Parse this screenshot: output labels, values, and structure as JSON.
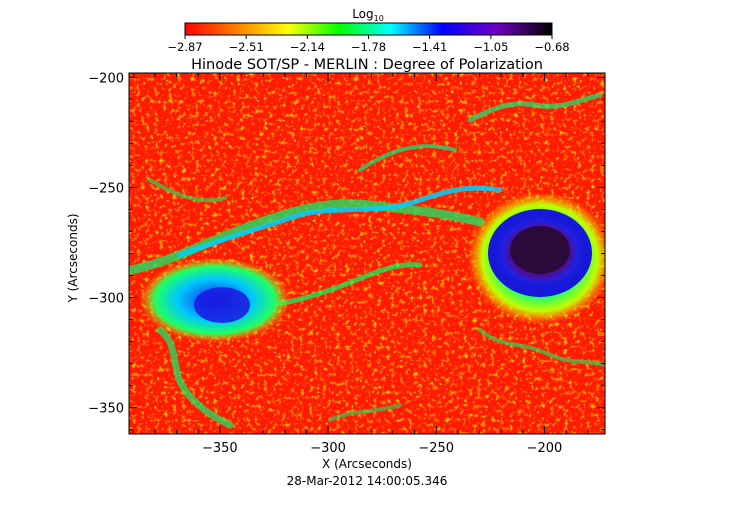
{
  "chart_data": {
    "type": "heatmap",
    "title": "Hinode SOT/SP - MERLIN : Degree of Polarization",
    "colorbar": {
      "label": "Log",
      "label_subscript": "10",
      "ticks": [
        "-2.87",
        "-2.51",
        "-2.14",
        "-1.78",
        "-1.41",
        "-1.05",
        "-0.68"
      ],
      "range": [
        -2.87,
        -0.68
      ],
      "colormap": [
        "#ff0000",
        "#ff7f00",
        "#ffff00",
        "#00ff00",
        "#00ffff",
        "#0000ff",
        "#7000c0",
        "#000000"
      ]
    },
    "xlabel": "X (Arcseconds)",
    "ylabel": "Y (Arcseconds)",
    "xlim": [
      -392,
      -172
    ],
    "ylim": [
      -362,
      -198
    ],
    "xticks": [
      -350,
      -300,
      -250,
      -200
    ],
    "xtick_labels": [
      "−350",
      "−300",
      "−250",
      "−200"
    ],
    "yticks": [
      -200,
      -250,
      -300,
      -350
    ],
    "ytick_labels": [
      "−200",
      "−250",
      "−300",
      "−350"
    ],
    "features": [
      {
        "type": "sunspot-umbra",
        "x": -204,
        "y": -283,
        "log10_value": -0.7
      },
      {
        "type": "plage",
        "x": -352,
        "y": -308,
        "log10_value": -1.2
      }
    ],
    "date_label": "28-Mar-2012 14:00:05.346"
  }
}
